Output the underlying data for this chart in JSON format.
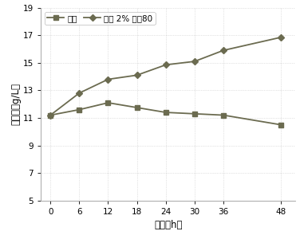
{
  "x": [
    0,
    6,
    12,
    18,
    24,
    30,
    36,
    48
  ],
  "series1_values": [
    11.2,
    11.6,
    12.1,
    11.75,
    11.4,
    11.3,
    11.2,
    10.5
  ],
  "series2_values": [
    11.2,
    12.8,
    13.8,
    14.1,
    14.85,
    15.1,
    15.9,
    16.85
  ],
  "series1_label": "对照",
  "series2_label": "添加 2% 吐渂80",
  "xlabel": "时间（h）",
  "ylabel": "生物量（g/L）",
  "ylim": [
    5,
    19
  ],
  "yticks": [
    5,
    7,
    9,
    11,
    13,
    15,
    17,
    19
  ],
  "xticks": [
    0,
    6,
    12,
    18,
    24,
    30,
    36,
    48
  ],
  "line_color": "#6b6b50",
  "bg_color": "#ffffff"
}
